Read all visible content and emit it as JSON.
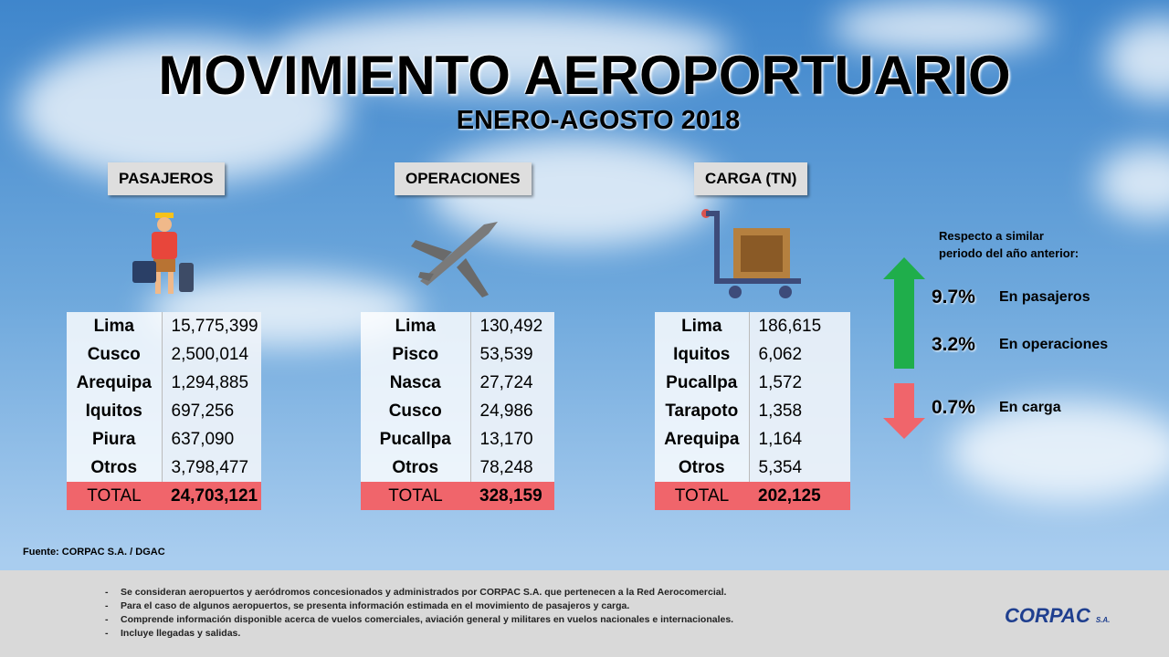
{
  "title": "MOVIMIENTO AEROPORTUARIO",
  "subtitle": "ENERO-AGOSTO 2018",
  "sections": [
    {
      "label": "PASAJEROS",
      "rows": [
        [
          "Lima",
          "15,775,399"
        ],
        [
          "Cusco",
          "2,500,014"
        ],
        [
          "Arequipa",
          "1,294,885"
        ],
        [
          "Iquitos",
          "697,256"
        ],
        [
          "Piura",
          "637,090"
        ],
        [
          "Otros",
          "3,798,477"
        ]
      ],
      "total": [
        "TOTAL",
        "24,703,121"
      ]
    },
    {
      "label": "OPERACIONES",
      "rows": [
        [
          "Lima",
          "130,492"
        ],
        [
          "Pisco",
          "53,539"
        ],
        [
          "Nasca",
          "27,724"
        ],
        [
          "Cusco",
          "24,986"
        ],
        [
          "Pucallpa",
          "13,170"
        ],
        [
          "Otros",
          "78,248"
        ]
      ],
      "total": [
        "TOTAL",
        "328,159"
      ]
    },
    {
      "label": "CARGA (TN)",
      "rows": [
        [
          "Lima",
          "186,615"
        ],
        [
          "Iquitos",
          "6,062"
        ],
        [
          "Pucallpa",
          "1,572"
        ],
        [
          "Tarapoto",
          "1,358"
        ],
        [
          "Arequipa",
          "1,164"
        ],
        [
          "Otros",
          "5,354"
        ]
      ],
      "total": [
        "TOTAL",
        "202,125"
      ]
    }
  ],
  "note": {
    "heading": [
      "Respecto a similar",
      "periodo del año anterior:"
    ],
    "items": [
      {
        "value": "9.7%",
        "label": "En pasajeros"
      },
      {
        "value": "3.2%",
        "label": "En operaciones"
      },
      {
        "value": "0.7%",
        "label": "En carga"
      }
    ]
  },
  "source": "Fuente: CORPAC S.A. / DGAC",
  "footnotes": [
    "Se consideran aeropuertos y aeródromos concesionados  y administrados  por CORPAC S.A. que pertenecen a la Red Aerocomercial.",
    "Para el caso de algunos aeropuertos, se presenta información  estimada en el movimiento de pasajeros  y carga.",
    "Comprende información  disponible acerca de vuelos comerciales, aviación  general y militares en vuelos nacionales  e internacionales.",
    "Incluye  llegadas  y salidas."
  ],
  "logo": {
    "name": "CORPAC",
    "suffix": "S.A."
  }
}
